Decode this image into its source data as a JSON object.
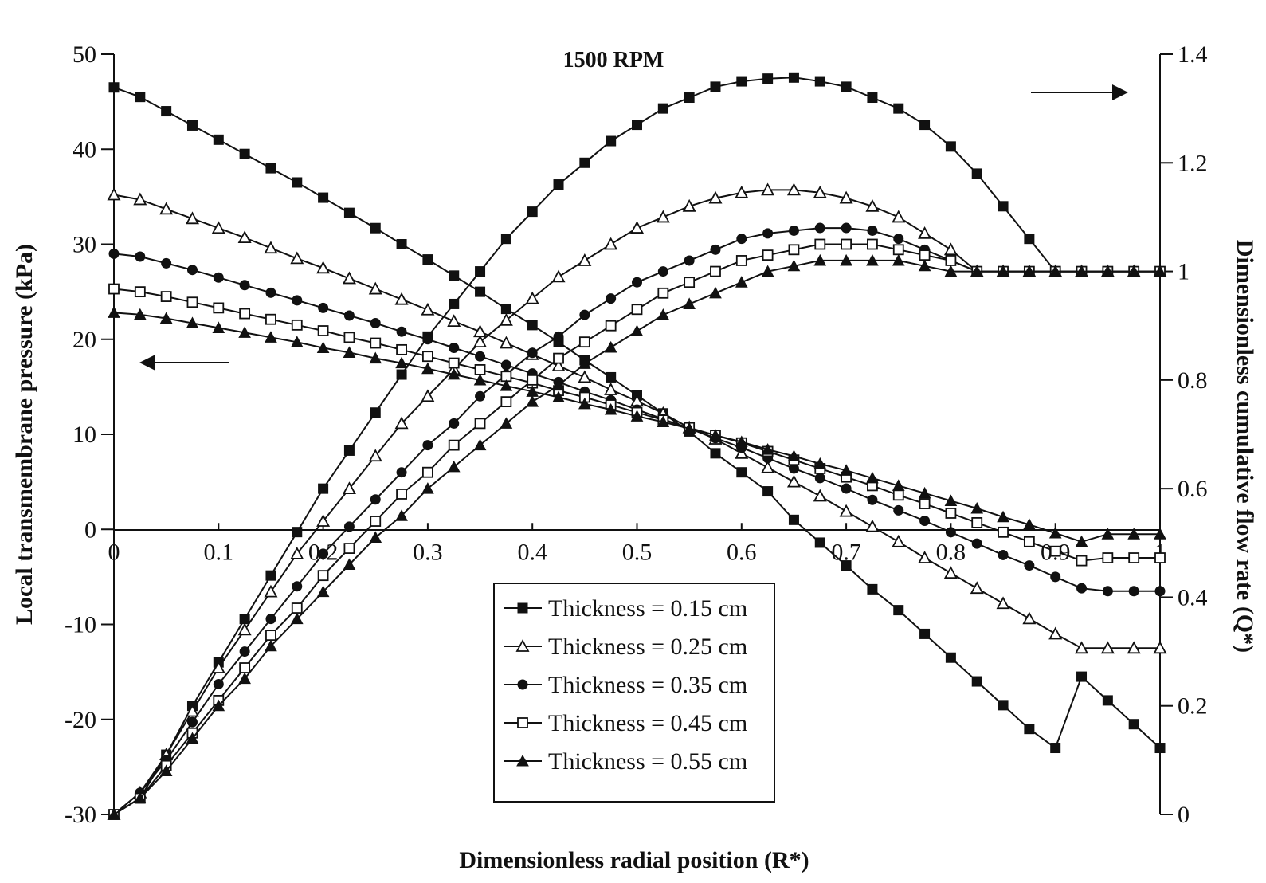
{
  "chart_data": {
    "type": "line",
    "title": "1500 RPM",
    "xlabel": "Dimensionless radial position (R*)",
    "ylabel_left": "Local transmembrane pressure (kPa)",
    "ylabel_right": "Dimensionless cumulative flow rate (Q*)",
    "xlim": [
      0,
      1
    ],
    "ylim_left": [
      -30,
      50
    ],
    "ylim_right": [
      0,
      1.4
    ],
    "x_ticks": [
      "0",
      "0.1",
      "0.2",
      "0.3",
      "0.4",
      "0.5",
      "0.6",
      "0.7",
      "0.8",
      "0.9",
      "1"
    ],
    "y_left_ticks": [
      "-30",
      "-20",
      "-10",
      "0",
      "10",
      "20",
      "30",
      "40",
      "50"
    ],
    "y_right_ticks": [
      "0",
      "0.2",
      "0.4",
      "0.6",
      "0.8",
      "1",
      "1.2",
      "1.4"
    ],
    "grid": false,
    "legend_position": "bottom-center",
    "x": [
      0,
      0.025,
      0.05,
      0.075,
      0.1,
      0.125,
      0.15,
      0.175,
      0.2,
      0.225,
      0.25,
      0.275,
      0.3,
      0.325,
      0.35,
      0.375,
      0.4,
      0.425,
      0.45,
      0.475,
      0.5,
      0.525,
      0.55,
      0.575,
      0.6,
      0.625,
      0.65,
      0.675,
      0.7,
      0.725,
      0.75,
      0.775,
      0.8,
      0.825,
      0.85,
      0.875,
      0.9,
      0.925,
      0.95,
      0.975,
      1
    ],
    "series": [
      {
        "name": "Thickness = 0.15 cm",
        "marker": "filled-square",
        "pressure_kpa": [
          46.5,
          45.5,
          44.0,
          42.5,
          41.0,
          39.5,
          38.0,
          36.5,
          34.9,
          33.3,
          31.7,
          30.0,
          28.4,
          26.7,
          25.0,
          23.2,
          21.5,
          19.7,
          17.8,
          16.0,
          14.1,
          12.2,
          10.3,
          8.0,
          6.0,
          4.0,
          1.0,
          -1.4,
          -3.8,
          -6.3,
          -8.5,
          -11.0,
          -13.5,
          -16.0,
          -18.5,
          -21.0,
          -23.0,
          -15.5,
          -18.0,
          -20.5,
          -23.0
        ],
        "flow_rate": [
          0,
          0.03,
          0.11,
          0.2,
          0.28,
          0.36,
          0.44,
          0.52,
          0.6,
          0.67,
          0.74,
          0.81,
          0.88,
          0.94,
          1.0,
          1.06,
          1.11,
          1.16,
          1.2,
          1.24,
          1.27,
          1.3,
          1.32,
          1.34,
          1.35,
          1.355,
          1.357,
          1.35,
          1.34,
          1.32,
          1.3,
          1.27,
          1.23,
          1.18,
          1.12,
          1.06,
          1.0,
          1.0,
          1.0,
          1.0,
          1.0
        ]
      },
      {
        "name": "Thickness = 0.25 cm",
        "marker": "open-triangle",
        "pressure_kpa": [
          35.2,
          34.7,
          33.7,
          32.7,
          31.7,
          30.7,
          29.6,
          28.5,
          27.5,
          26.4,
          25.3,
          24.2,
          23.1,
          21.9,
          20.8,
          19.6,
          18.4,
          17.2,
          16.0,
          14.7,
          13.5,
          12.2,
          10.7,
          9.5,
          8.0,
          6.5,
          5.0,
          3.5,
          1.9,
          0.3,
          -1.3,
          -3.0,
          -4.6,
          -6.2,
          -7.8,
          -9.4,
          -11.0,
          -12.5,
          -12.5,
          -12.5,
          -12.5
        ],
        "flow_rate": [
          0,
          0.04,
          0.11,
          0.19,
          0.27,
          0.34,
          0.41,
          0.48,
          0.54,
          0.6,
          0.66,
          0.72,
          0.77,
          0.82,
          0.87,
          0.91,
          0.95,
          0.99,
          1.02,
          1.05,
          1.08,
          1.1,
          1.12,
          1.135,
          1.145,
          1.15,
          1.15,
          1.145,
          1.135,
          1.12,
          1.1,
          1.07,
          1.04,
          1.0,
          1.0,
          1.0,
          1.0,
          1.0,
          1.0,
          1.0,
          1.0
        ]
      },
      {
        "name": "Thickness = 0.35 cm",
        "marker": "filled-circle",
        "pressure_kpa": [
          29.0,
          28.7,
          28.0,
          27.3,
          26.5,
          25.7,
          24.9,
          24.1,
          23.3,
          22.5,
          21.7,
          20.8,
          20.0,
          19.1,
          18.2,
          17.3,
          16.4,
          15.5,
          14.5,
          13.6,
          12.6,
          11.6,
          10.6,
          9.6,
          8.6,
          7.5,
          6.4,
          5.4,
          4.3,
          3.1,
          2.0,
          0.9,
          -0.3,
          -1.5,
          -2.7,
          -3.8,
          -5.0,
          -6.2,
          -6.5,
          -6.5,
          -6.5
        ],
        "flow_rate": [
          0,
          0.04,
          0.1,
          0.17,
          0.24,
          0.3,
          0.36,
          0.42,
          0.48,
          0.53,
          0.58,
          0.63,
          0.68,
          0.72,
          0.77,
          0.81,
          0.85,
          0.88,
          0.92,
          0.95,
          0.98,
          1.0,
          1.02,
          1.04,
          1.06,
          1.07,
          1.075,
          1.08,
          1.08,
          1.075,
          1.06,
          1.04,
          1.02,
          1.0,
          1.0,
          1.0,
          1.0,
          1.0,
          1.0,
          1.0,
          1.0
        ]
      },
      {
        "name": "Thickness = 0.45 cm",
        "marker": "open-square",
        "pressure_kpa": [
          25.3,
          25.0,
          24.5,
          23.9,
          23.3,
          22.7,
          22.1,
          21.5,
          20.9,
          20.2,
          19.6,
          18.9,
          18.2,
          17.5,
          16.8,
          16.1,
          15.4,
          14.6,
          13.9,
          13.1,
          12.3,
          11.5,
          10.7,
          9.9,
          9.1,
          8.2,
          7.3,
          6.4,
          5.5,
          4.6,
          3.6,
          2.7,
          1.7,
          0.7,
          -0.3,
          -1.3,
          -2.3,
          -3.3,
          -3.0,
          -3.0,
          -3.0
        ],
        "flow_rate": [
          0,
          0.03,
          0.09,
          0.15,
          0.21,
          0.27,
          0.33,
          0.38,
          0.44,
          0.49,
          0.54,
          0.59,
          0.63,
          0.68,
          0.72,
          0.76,
          0.8,
          0.84,
          0.87,
          0.9,
          0.93,
          0.96,
          0.98,
          1.0,
          1.02,
          1.03,
          1.04,
          1.05,
          1.05,
          1.05,
          1.04,
          1.03,
          1.02,
          1.0,
          1.0,
          1.0,
          1.0,
          1.0,
          1.0,
          1.0,
          1.0
        ]
      },
      {
        "name": "Thickness = 0.55 cm",
        "marker": "filled-triangle",
        "pressure_kpa": [
          22.8,
          22.6,
          22.2,
          21.7,
          21.2,
          20.7,
          20.2,
          19.7,
          19.1,
          18.6,
          18.0,
          17.5,
          16.9,
          16.3,
          15.7,
          15.1,
          14.5,
          13.9,
          13.2,
          12.6,
          11.9,
          11.3,
          10.6,
          9.9,
          9.2,
          8.4,
          7.7,
          6.9,
          6.2,
          5.4,
          4.6,
          3.8,
          3.0,
          2.2,
          1.3,
          0.5,
          -0.4,
          -1.3,
          -0.5,
          -0.5,
          -0.5
        ],
        "flow_rate": [
          0,
          0.03,
          0.08,
          0.14,
          0.2,
          0.25,
          0.31,
          0.36,
          0.41,
          0.46,
          0.51,
          0.55,
          0.6,
          0.64,
          0.68,
          0.72,
          0.76,
          0.79,
          0.83,
          0.86,
          0.89,
          0.92,
          0.94,
          0.96,
          0.98,
          1.0,
          1.01,
          1.02,
          1.02,
          1.02,
          1.02,
          1.01,
          1.0,
          1.0,
          1.0,
          1.0,
          1.0,
          1.0,
          1.0,
          1.0,
          1.0
        ]
      }
    ]
  }
}
